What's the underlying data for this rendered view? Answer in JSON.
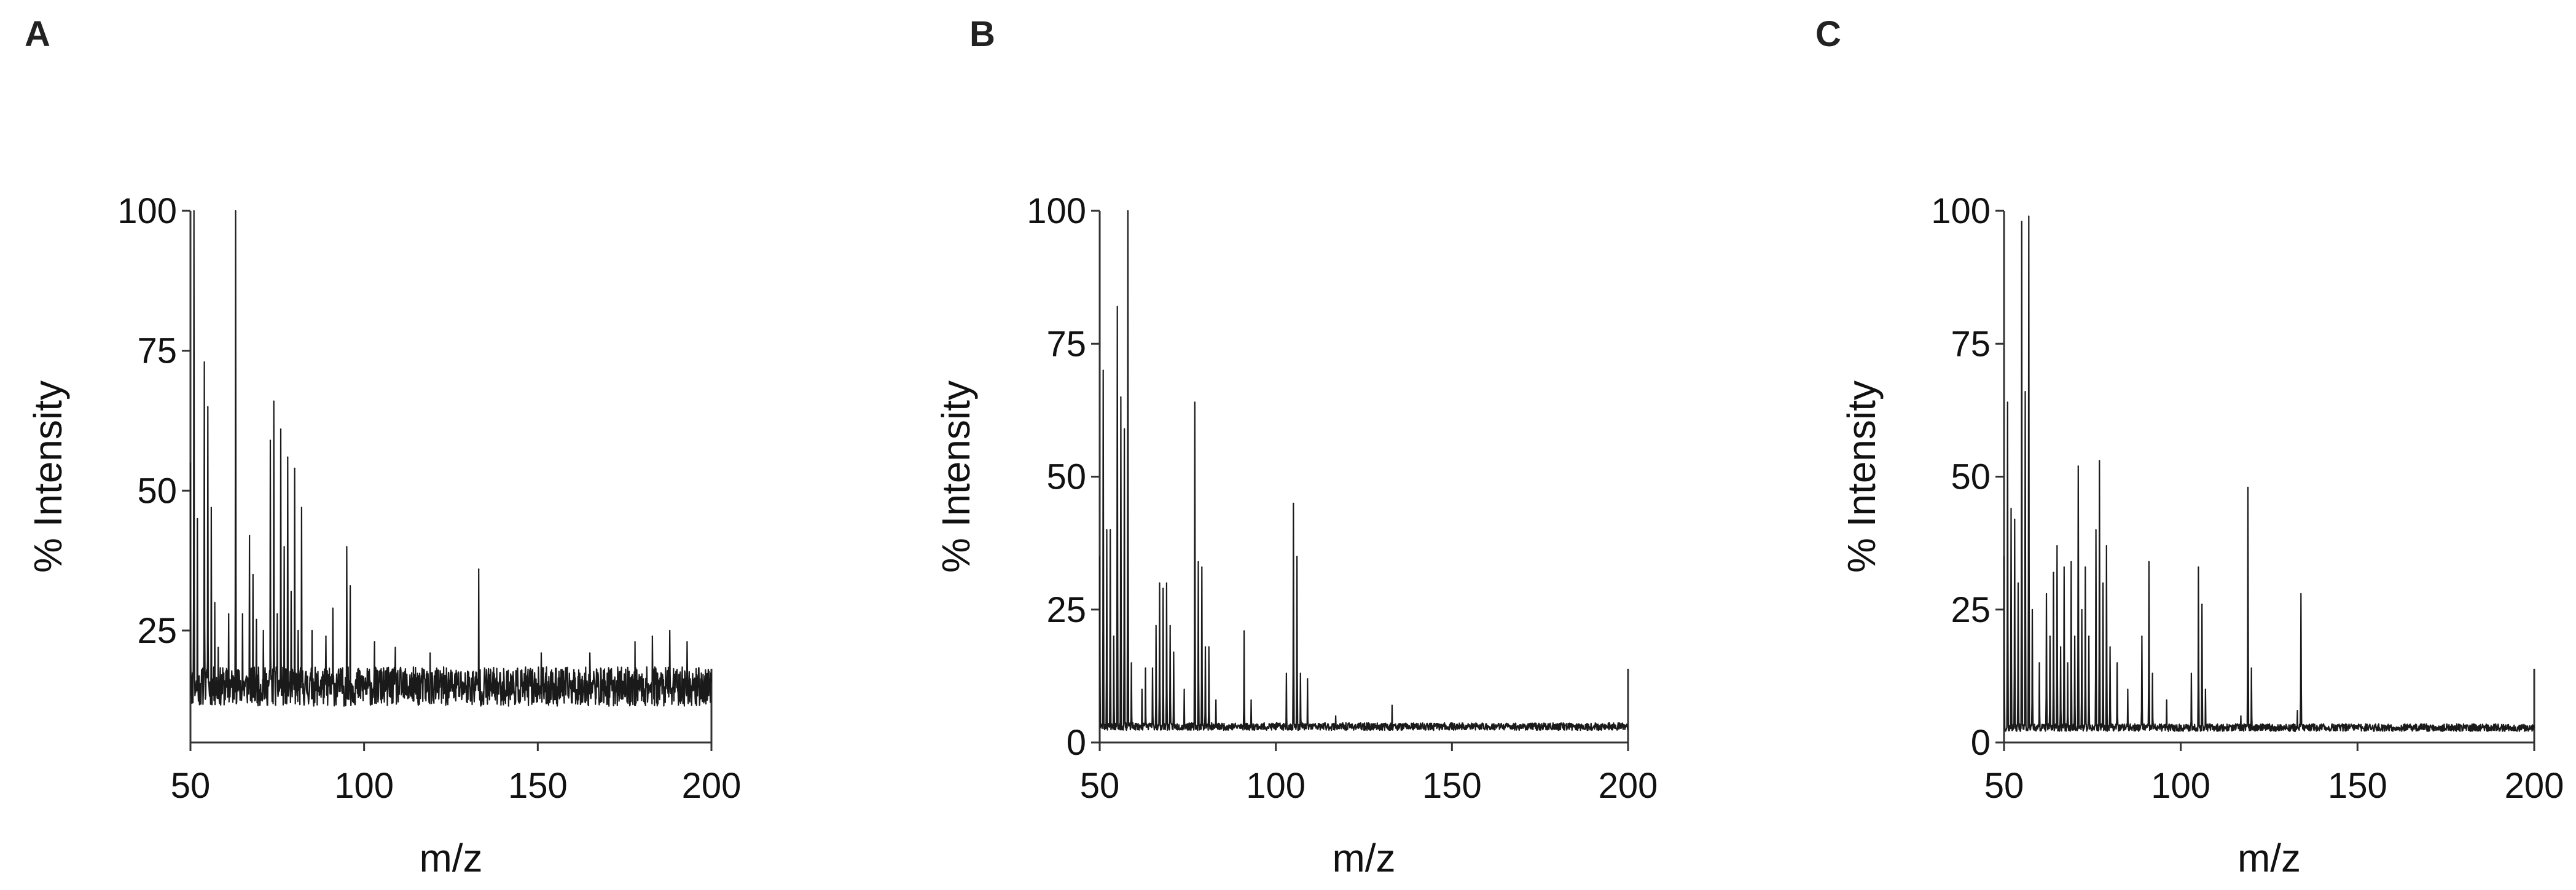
{
  "colors": {
    "trace": "#1a1a1a",
    "axis": "#333333",
    "text": "#111111",
    "background": "#ffffff"
  },
  "chart_data": [
    {
      "panel": "A",
      "type": "line",
      "xlabel": "m/z",
      "ylabel": "% Intensity",
      "xlim": [
        50,
        200
      ],
      "ylim": [
        5,
        100
      ],
      "xticks": [
        50,
        100,
        150,
        200
      ],
      "yticks": [
        25,
        50,
        75,
        100
      ],
      "grid": false,
      "baseline": 15,
      "noise": 3.5,
      "seed": 11,
      "peaks": [
        {
          "x": 50,
          "y": 55
        },
        {
          "x": 51,
          "y": 100
        },
        {
          "x": 52,
          "y": 45
        },
        {
          "x": 54,
          "y": 73
        },
        {
          "x": 55,
          "y": 65
        },
        {
          "x": 56,
          "y": 47
        },
        {
          "x": 57,
          "y": 30
        },
        {
          "x": 58,
          "y": 22
        },
        {
          "x": 61,
          "y": 28
        },
        {
          "x": 63,
          "y": 100
        },
        {
          "x": 65,
          "y": 28
        },
        {
          "x": 67,
          "y": 42
        },
        {
          "x": 68,
          "y": 35
        },
        {
          "x": 69,
          "y": 27
        },
        {
          "x": 71,
          "y": 25
        },
        {
          "x": 73,
          "y": 59
        },
        {
          "x": 74,
          "y": 66
        },
        {
          "x": 75,
          "y": 28
        },
        {
          "x": 76,
          "y": 61
        },
        {
          "x": 77,
          "y": 40
        },
        {
          "x": 78,
          "y": 56
        },
        {
          "x": 79,
          "y": 32
        },
        {
          "x": 80,
          "y": 54
        },
        {
          "x": 81,
          "y": 25
        },
        {
          "x": 82,
          "y": 47
        },
        {
          "x": 85,
          "y": 25
        },
        {
          "x": 89,
          "y": 24
        },
        {
          "x": 91,
          "y": 29
        },
        {
          "x": 95,
          "y": 40
        },
        {
          "x": 96,
          "y": 33
        },
        {
          "x": 103,
          "y": 23
        },
        {
          "x": 109,
          "y": 22
        },
        {
          "x": 119,
          "y": 21
        },
        {
          "x": 133,
          "y": 36
        },
        {
          "x": 151,
          "y": 21
        },
        {
          "x": 165,
          "y": 21
        },
        {
          "x": 178,
          "y": 23
        },
        {
          "x": 183,
          "y": 24
        },
        {
          "x": 188,
          "y": 25
        },
        {
          "x": 193,
          "y": 23
        }
      ]
    },
    {
      "panel": "B",
      "type": "line",
      "xlabel": "m/z",
      "ylabel": "% Intensity",
      "xlim": [
        50,
        200
      ],
      "ylim": [
        0,
        100
      ],
      "xticks": [
        50,
        100,
        150,
        200
      ],
      "yticks": [
        0,
        25,
        50,
        75,
        100
      ],
      "grid": false,
      "baseline": 3,
      "noise": 0.7,
      "seed": 23,
      "peaks": [
        {
          "x": 50,
          "y": 35
        },
        {
          "x": 51,
          "y": 70
        },
        {
          "x": 52,
          "y": 40
        },
        {
          "x": 53,
          "y": 40
        },
        {
          "x": 54,
          "y": 20
        },
        {
          "x": 55,
          "y": 82
        },
        {
          "x": 56,
          "y": 65
        },
        {
          "x": 57,
          "y": 59
        },
        {
          "x": 58,
          "y": 100
        },
        {
          "x": 59,
          "y": 15
        },
        {
          "x": 62,
          "y": 10
        },
        {
          "x": 63,
          "y": 14
        },
        {
          "x": 65,
          "y": 14
        },
        {
          "x": 66,
          "y": 22
        },
        {
          "x": 67,
          "y": 30
        },
        {
          "x": 68,
          "y": 29
        },
        {
          "x": 69,
          "y": 30
        },
        {
          "x": 70,
          "y": 22
        },
        {
          "x": 71,
          "y": 17
        },
        {
          "x": 74,
          "y": 10
        },
        {
          "x": 77,
          "y": 64
        },
        {
          "x": 78,
          "y": 34
        },
        {
          "x": 79,
          "y": 33
        },
        {
          "x": 80,
          "y": 18
        },
        {
          "x": 81,
          "y": 18
        },
        {
          "x": 83,
          "y": 8
        },
        {
          "x": 91,
          "y": 21
        },
        {
          "x": 93,
          "y": 8
        },
        {
          "x": 103,
          "y": 13
        },
        {
          "x": 105,
          "y": 45
        },
        {
          "x": 106,
          "y": 35
        },
        {
          "x": 107,
          "y": 13
        },
        {
          "x": 109,
          "y": 12
        },
        {
          "x": 117,
          "y": 5
        },
        {
          "x": 133,
          "y": 7
        }
      ]
    },
    {
      "panel": "C",
      "type": "line",
      "xlabel": "m/z",
      "ylabel": "% Intensity",
      "xlim": [
        50,
        200
      ],
      "ylim": [
        0,
        100
      ],
      "xticks": [
        50,
        100,
        150,
        200
      ],
      "yticks": [
        0,
        25,
        50,
        75,
        100
      ],
      "grid": false,
      "baseline": 2.8,
      "noise": 0.7,
      "seed": 37,
      "peaks": [
        {
          "x": 50,
          "y": 35
        },
        {
          "x": 51,
          "y": 64
        },
        {
          "x": 52,
          "y": 44
        },
        {
          "x": 53,
          "y": 42
        },
        {
          "x": 54,
          "y": 30
        },
        {
          "x": 55,
          "y": 98
        },
        {
          "x": 56,
          "y": 66
        },
        {
          "x": 57,
          "y": 99
        },
        {
          "x": 58,
          "y": 25
        },
        {
          "x": 60,
          "y": 15
        },
        {
          "x": 62,
          "y": 28
        },
        {
          "x": 63,
          "y": 20
        },
        {
          "x": 64,
          "y": 32
        },
        {
          "x": 65,
          "y": 37
        },
        {
          "x": 66,
          "y": 18
        },
        {
          "x": 67,
          "y": 33
        },
        {
          "x": 68,
          "y": 15
        },
        {
          "x": 69,
          "y": 34
        },
        {
          "x": 70,
          "y": 20
        },
        {
          "x": 71,
          "y": 52
        },
        {
          "x": 72,
          "y": 25
        },
        {
          "x": 73,
          "y": 33
        },
        {
          "x": 74,
          "y": 20
        },
        {
          "x": 76,
          "y": 40
        },
        {
          "x": 77,
          "y": 53
        },
        {
          "x": 78,
          "y": 30
        },
        {
          "x": 79,
          "y": 37
        },
        {
          "x": 80,
          "y": 18
        },
        {
          "x": 82,
          "y": 15
        },
        {
          "x": 85,
          "y": 10
        },
        {
          "x": 89,
          "y": 20
        },
        {
          "x": 91,
          "y": 34
        },
        {
          "x": 92,
          "y": 13
        },
        {
          "x": 96,
          "y": 8
        },
        {
          "x": 103,
          "y": 13
        },
        {
          "x": 105,
          "y": 33
        },
        {
          "x": 106,
          "y": 26
        },
        {
          "x": 107,
          "y": 10
        },
        {
          "x": 117,
          "y": 5
        },
        {
          "x": 119,
          "y": 48
        },
        {
          "x": 120,
          "y": 14
        },
        {
          "x": 133,
          "y": 6
        },
        {
          "x": 134,
          "y": 28
        }
      ]
    }
  ]
}
